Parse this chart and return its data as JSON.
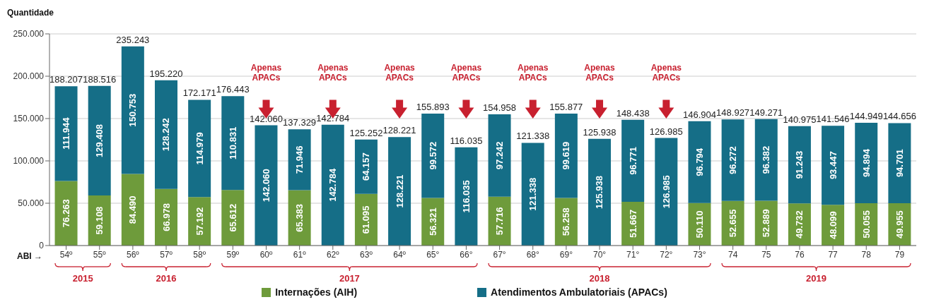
{
  "chart_data": {
    "type": "bar",
    "stacked": true,
    "ylabel": "Quantidade",
    "xlabel": "ABI →",
    "categories": [
      "54º",
      "55º",
      "56º",
      "57º",
      "58º",
      "59º",
      "60º",
      "61º",
      "62º",
      "63º",
      "64º",
      "65°",
      "66°",
      "67°",
      "68°",
      "69°",
      "70°",
      "71°",
      "72°",
      "73°",
      "74",
      "75",
      "76",
      "77",
      "78",
      "79"
    ],
    "series": [
      {
        "name": "Internações (AIH)",
        "color": "#6e9b3b",
        "values": [
          76263,
          59108,
          84490,
          66978,
          57192,
          65612,
          null,
          65383,
          null,
          61095,
          null,
          56321,
          null,
          57716,
          null,
          56258,
          null,
          51667,
          null,
          50110,
          52655,
          52889,
          49732,
          48099,
          50055,
          49955
        ],
        "value_labels": [
          "76.263",
          "59.108",
          "84.490",
          "66.978",
          "57.192",
          "65.612",
          null,
          "65.383",
          null,
          "61.095",
          null,
          "56.321",
          null,
          "57.716",
          null,
          "56.258",
          null,
          "51.667",
          null,
          "50.110",
          "52.655",
          "52.889",
          "49.732",
          "48.099",
          "50.055",
          "49.955"
        ]
      },
      {
        "name": "Atendimentos Ambulatoriais (APACs)",
        "color": "#156e87",
        "values": [
          111944,
          129408,
          150753,
          128242,
          114979,
          110831,
          142060,
          71946,
          142784,
          64157,
          128221,
          99572,
          116035,
          97242,
          121338,
          99619,
          125938,
          96771,
          126985,
          96794,
          96272,
          96382,
          91243,
          93447,
          94894,
          94701
        ],
        "value_labels": [
          "111.944",
          "129.408",
          "150.753",
          "128.242",
          "114.979",
          "110.831",
          "142.060",
          "71.946",
          "142.784",
          "64.157",
          "128.221",
          "99.572",
          "116.035",
          "97.242",
          "121.338",
          "99.619",
          "125.938",
          "96.771",
          "126.985",
          "96.794",
          "96.272",
          "96.382",
          "91.243",
          "93.447",
          "94.894",
          "94.701"
        ]
      }
    ],
    "totals": [
      "188.207",
      "188.516",
      "235.243",
      "195.220",
      "172.171",
      "176.443",
      "142.060",
      "137.329",
      "142.784",
      "125.252",
      "128.221",
      "155.893",
      "116.035",
      "154.958",
      "121.338",
      "155.877",
      "125.938",
      "148.438",
      "126.985",
      "146.904",
      "148.927",
      "149.271",
      "140.975",
      "141.546",
      "144.949",
      "144.656"
    ],
    "ylim": [
      0,
      250000
    ],
    "yticks": [
      {
        "value": 0,
        "label": "0"
      },
      {
        "value": 50000,
        "label": "50.000"
      },
      {
        "value": 100000,
        "label": "100.000"
      },
      {
        "value": 150000,
        "label": "150.000"
      },
      {
        "value": 200000,
        "label": "200.000"
      },
      {
        "value": 250000,
        "label": "250.000"
      }
    ],
    "grid": "y",
    "legend": "bottom",
    "annotations": [
      "Apenas APACs",
      "Apenas APACs",
      "Apenas APACs",
      "Apenas APACs",
      "Apenas APACs",
      "Apenas APACs",
      "Apenas APACs",
      "2015",
      "2016",
      "2017",
      "2018",
      "2019"
    ]
  }
}
